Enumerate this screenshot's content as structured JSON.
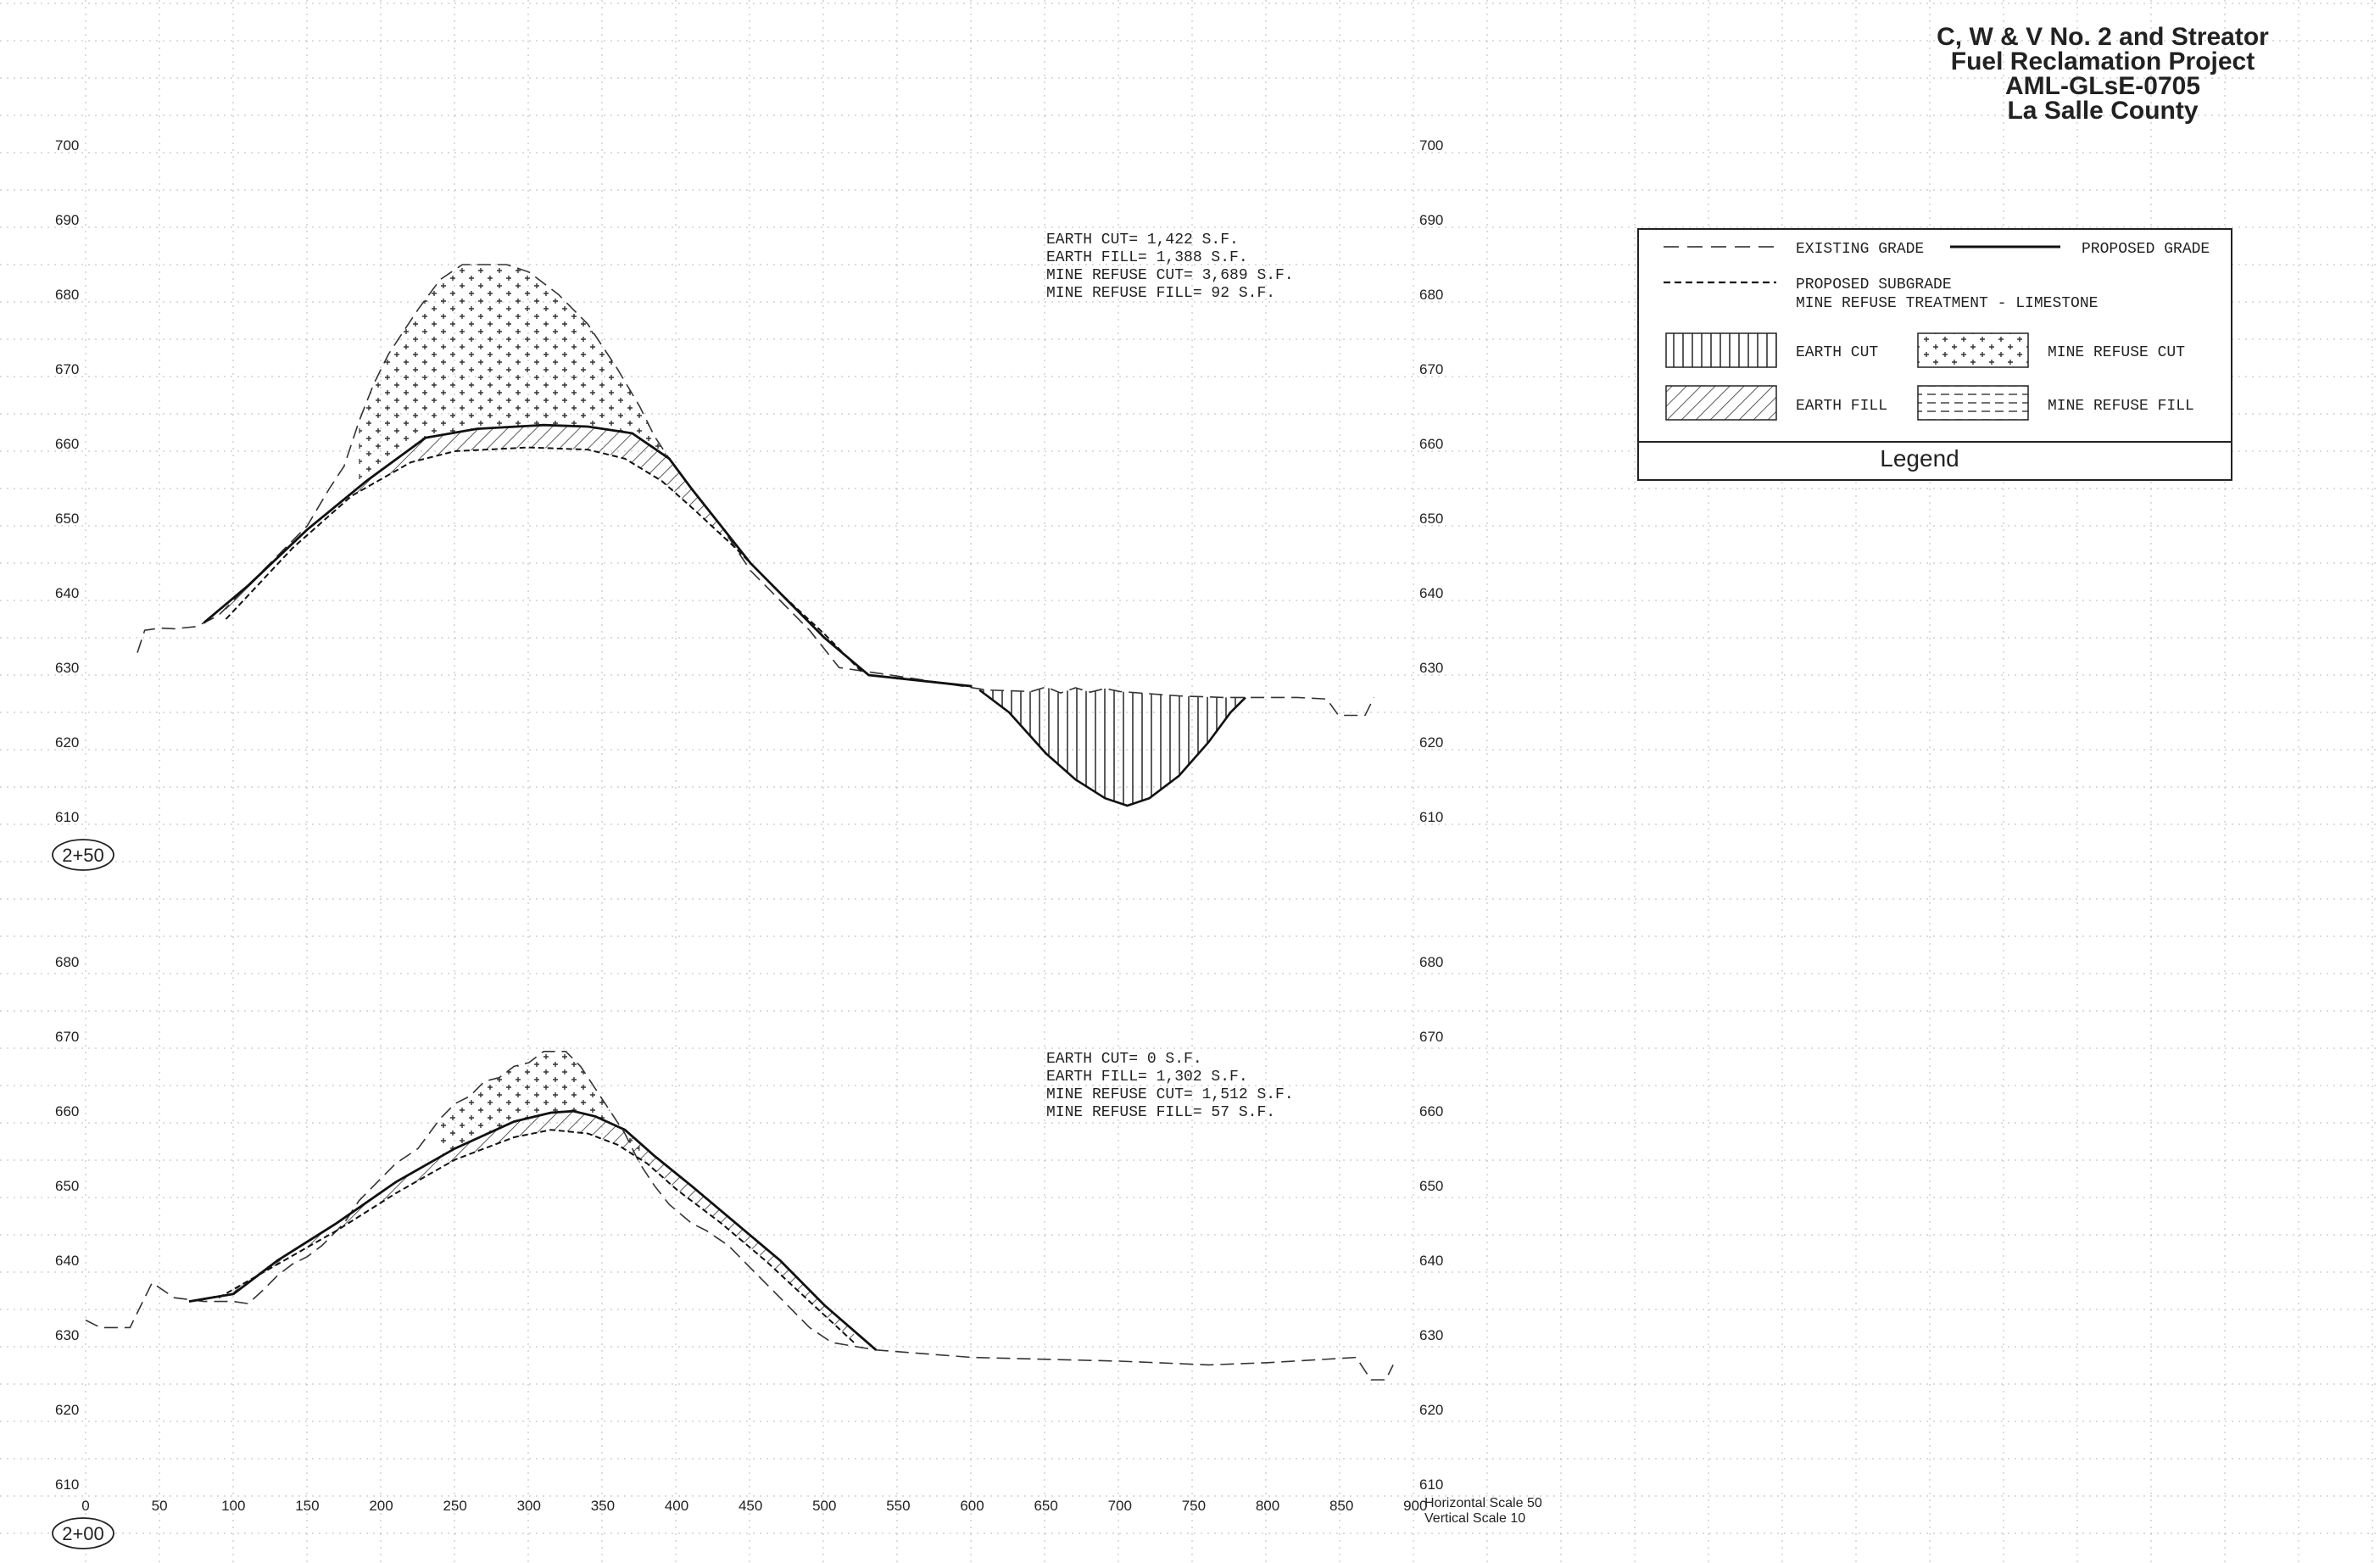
{
  "title_block": {
    "line1": "C, W & V No. 2 and Streator",
    "line2": "Fuel Reclamation Project",
    "line3": "AML-GLsE-0705",
    "line4": "La Salle County"
  },
  "legend": {
    "existing_grade": "EXISTING GRADE",
    "proposed_grade": "PROPOSED GRADE",
    "proposed_subgrade": "PROPOSED SUBGRADE",
    "mine_refuse_treatment": "MINE REFUSE TREATMENT - LIMESTONE",
    "earth_cut": "EARTH CUT",
    "mine_refuse_cut": "MINE REFUSE CUT",
    "earth_fill": "EARTH FILL",
    "mine_refuse_fill": "MINE REFUSE FILL",
    "caption": "Legend"
  },
  "sections": [
    {
      "station": "2+50",
      "elevations": [
        "700",
        "690",
        "680",
        "670",
        "660",
        "650",
        "640",
        "630",
        "620",
        "610"
      ],
      "quantities": [
        "EARTH CUT= 1,422 S.F.",
        "EARTH FILL= 1,388 S.F.",
        "MINE REFUSE CUT= 3,689 S.F.",
        "MINE REFUSE FILL= 92 S.F."
      ]
    },
    {
      "station": "2+00",
      "elevations": [
        "680",
        "670",
        "660",
        "650",
        "640",
        "630",
        "620",
        "610"
      ],
      "quantities": [
        "EARTH CUT= 0 S.F.",
        "EARTH FILL= 1,302 S.F.",
        "MINE REFUSE CUT= 1,512 S.F.",
        "MINE REFUSE FILL= 57 S.F."
      ]
    }
  ],
  "offsets": [
    "0",
    "50",
    "100",
    "150",
    "200",
    "250",
    "300",
    "350",
    "400",
    "450",
    "500",
    "550",
    "600",
    "650",
    "700",
    "750",
    "800",
    "850",
    "900"
  ],
  "scale": {
    "horizontal": "Horizontal Scale 50",
    "vertical": "Vertical Scale 10"
  },
  "profiles": {
    "s250": {
      "existing": [
        [
          35,
          633
        ],
        [
          40,
          636
        ],
        [
          50,
          636.3
        ],
        [
          60,
          636.2
        ],
        [
          75,
          636.5
        ],
        [
          90,
          638
        ],
        [
          110,
          642
        ],
        [
          130,
          646
        ],
        [
          150,
          650
        ],
        [
          165,
          655
        ],
        [
          175,
          658
        ],
        [
          185,
          664
        ],
        [
          195,
          669
        ],
        [
          205,
          673
        ],
        [
          215,
          676
        ],
        [
          225,
          679
        ],
        [
          240,
          683
        ],
        [
          255,
          685
        ],
        [
          285,
          685
        ],
        [
          300,
          684
        ],
        [
          320,
          681
        ],
        [
          340,
          677
        ],
        [
          360,
          671
        ],
        [
          375,
          666
        ],
        [
          385,
          662
        ],
        [
          395,
          659
        ],
        [
          410,
          655
        ],
        [
          430,
          650
        ],
        [
          450,
          644
        ],
        [
          470,
          640
        ],
        [
          490,
          636
        ],
        [
          510,
          631
        ],
        [
          545,
          630
        ],
        [
          610,
          628
        ],
        [
          640,
          627.8
        ],
        [
          650,
          628.4
        ],
        [
          660,
          627.6
        ],
        [
          670,
          628.3
        ],
        [
          680,
          627.7
        ],
        [
          690,
          628.2
        ],
        [
          700,
          627.8
        ],
        [
          720,
          627.5
        ],
        [
          740,
          627.2
        ],
        [
          770,
          627
        ],
        [
          820,
          627
        ],
        [
          840,
          626.8
        ],
        [
          848,
          624.6
        ],
        [
          866,
          624.6
        ],
        [
          872,
          627
        ]
      ],
      "proposed": [
        [
          80,
          637
        ],
        [
          110,
          642
        ],
        [
          150,
          649.5
        ],
        [
          190,
          656
        ],
        [
          230,
          661.8
        ],
        [
          265,
          663
        ],
        [
          310,
          663.5
        ],
        [
          340,
          663.3
        ],
        [
          370,
          662.4
        ],
        [
          395,
          659
        ],
        [
          410,
          655
        ],
        [
          430,
          650
        ],
        [
          450,
          645
        ],
        [
          475,
          640
        ],
        [
          500,
          635
        ],
        [
          530,
          630
        ],
        [
          600,
          628.5
        ]
      ],
      "subgrade": [
        [
          95,
          637.5
        ],
        [
          140,
          647
        ],
        [
          180,
          654
        ],
        [
          220,
          658.5
        ],
        [
          250,
          660
        ],
        [
          300,
          660.5
        ],
        [
          340,
          660.2
        ],
        [
          365,
          659
        ],
        [
          390,
          656
        ],
        [
          410,
          652.5
        ],
        [
          440,
          647
        ],
        [
          470,
          641
        ],
        [
          500,
          635.5
        ],
        [
          525,
          630.5
        ]
      ],
      "channel": [
        [
          605,
          628
        ],
        [
          625,
          625
        ],
        [
          650,
          619.5
        ],
        [
          670,
          616
        ],
        [
          690,
          613.5
        ],
        [
          705,
          612.5
        ],
        [
          720,
          613.5
        ],
        [
          740,
          616.5
        ],
        [
          760,
          621
        ],
        [
          775,
          625
        ],
        [
          785,
          627
        ]
      ]
    },
    "s200": {
      "existing": [
        [
          0,
          633
        ],
        [
          10,
          632
        ],
        [
          30,
          632
        ],
        [
          45,
          638
        ],
        [
          60,
          636
        ],
        [
          80,
          635.5
        ],
        [
          100,
          635.5
        ],
        [
          110,
          635.2
        ],
        [
          120,
          637
        ],
        [
          130,
          639
        ],
        [
          140,
          640.5
        ],
        [
          150,
          641.5
        ],
        [
          160,
          643
        ],
        [
          175,
          646
        ],
        [
          185,
          649
        ],
        [
          195,
          651
        ],
        [
          210,
          654
        ],
        [
          225,
          656
        ],
        [
          240,
          660
        ],
        [
          250,
          662
        ],
        [
          260,
          663
        ],
        [
          270,
          665
        ],
        [
          280,
          665.5
        ],
        [
          290,
          667
        ],
        [
          300,
          667.5
        ],
        [
          310,
          669
        ],
        [
          325,
          669
        ],
        [
          335,
          667
        ],
        [
          345,
          664
        ],
        [
          355,
          661
        ],
        [
          365,
          658
        ],
        [
          375,
          654
        ],
        [
          385,
          651
        ],
        [
          395,
          648.5
        ],
        [
          410,
          646
        ],
        [
          420,
          645
        ],
        [
          435,
          643
        ],
        [
          450,
          640
        ],
        [
          470,
          636
        ],
        [
          490,
          632
        ],
        [
          505,
          630
        ],
        [
          535,
          629
        ],
        [
          600,
          628
        ],
        [
          700,
          627.5
        ],
        [
          760,
          627
        ],
        [
          800,
          627.3
        ],
        [
          860,
          628
        ],
        [
          870,
          625
        ],
        [
          880,
          625
        ],
        [
          885,
          627
        ]
      ],
      "proposed": [
        [
          70,
          635.5
        ],
        [
          100,
          636.5
        ],
        [
          130,
          641
        ],
        [
          170,
          646
        ],
        [
          210,
          651.5
        ],
        [
          250,
          656
        ],
        [
          290,
          659.6
        ],
        [
          315,
          660.8
        ],
        [
          330,
          661
        ],
        [
          345,
          660.3
        ],
        [
          365,
          658.5
        ],
        [
          385,
          655
        ],
        [
          410,
          651
        ],
        [
          440,
          646
        ],
        [
          470,
          641
        ],
        [
          500,
          635
        ],
        [
          535,
          629
        ]
      ],
      "subgrade": [
        [
          90,
          636
        ],
        [
          130,
          640.5
        ],
        [
          170,
          645
        ],
        [
          210,
          650
        ],
        [
          250,
          654.5
        ],
        [
          290,
          657.5
        ],
        [
          315,
          658.5
        ],
        [
          340,
          658
        ],
        [
          360,
          656.5
        ],
        [
          380,
          654
        ],
        [
          400,
          650.5
        ],
        [
          430,
          646
        ],
        [
          460,
          641
        ],
        [
          490,
          635.5
        ],
        [
          520,
          630
        ]
      ]
    }
  }
}
